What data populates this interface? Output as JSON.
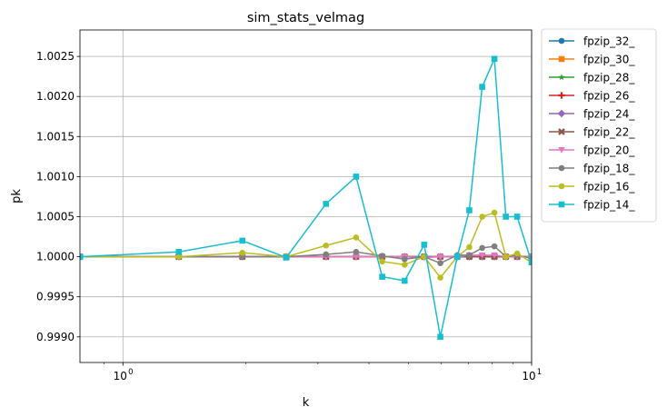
{
  "chart_data": {
    "type": "line",
    "title": "sim_stats_velmag",
    "xlabel": "k",
    "ylabel": "pk",
    "xscale": "log",
    "xlim": [
      0.785,
      10.0
    ],
    "ylim": [
      0.99868,
      1.00283
    ],
    "grid": true,
    "legend_position": "outside-right",
    "x_ticks": [
      {
        "value": 1,
        "label": "10",
        "exp": "0"
      },
      {
        "value": 10,
        "label": "10",
        "exp": "1"
      }
    ],
    "y_ticks": [
      {
        "value": 0.999,
        "label": "0.9990"
      },
      {
        "value": 0.9995,
        "label": "0.9995"
      },
      {
        "value": 1.0,
        "label": "1.0000"
      },
      {
        "value": 1.0005,
        "label": "1.0005"
      },
      {
        "value": 1.001,
        "label": "1.0010"
      },
      {
        "value": 1.0015,
        "label": "1.0015"
      },
      {
        "value": 1.002,
        "label": "1.0020"
      },
      {
        "value": 1.0025,
        "label": "1.0025"
      }
    ],
    "x": [
      0.785,
      1.37,
      1.96,
      2.51,
      3.14,
      3.72,
      4.31,
      4.89,
      5.46,
      5.98,
      6.58,
      7.04,
      7.57,
      8.11,
      8.65,
      9.22,
      10.0
    ],
    "series": [
      {
        "name": "fpzip_32_",
        "color": "#1f77b4",
        "marker": "circle",
        "values": [
          1.0,
          1.0,
          1.0,
          1.0,
          1.0,
          1.0,
          1.0,
          1.0,
          1.0,
          1.0,
          1.0,
          1.0,
          1.0,
          1.0,
          1.0,
          1.0,
          1.0
        ]
      },
      {
        "name": "fpzip_30_",
        "color": "#ff7f0e",
        "marker": "square",
        "values": [
          1.0,
          1.0,
          1.0,
          1.0,
          1.0,
          1.0,
          1.0,
          1.0,
          1.0,
          1.0,
          1.0,
          1.0,
          1.0,
          1.0,
          1.0,
          1.0,
          1.0
        ]
      },
      {
        "name": "fpzip_28_",
        "color": "#2ca02c",
        "marker": "star",
        "values": [
          1.0,
          1.0,
          1.0,
          1.0,
          1.0,
          1.0,
          1.0,
          1.0,
          1.0,
          1.0,
          1.0,
          1.0,
          1.0,
          1.0,
          1.0,
          1.0,
          1.0
        ]
      },
      {
        "name": "fpzip_26_",
        "color": "#d62728",
        "marker": "plus",
        "values": [
          1.0,
          1.0,
          1.0,
          1.0,
          1.0,
          1.0,
          1.0,
          1.0,
          1.0,
          1.0,
          1.0,
          1.0,
          1.0,
          1.0,
          1.0,
          1.0,
          1.0
        ]
      },
      {
        "name": "fpzip_24_",
        "color": "#9467bd",
        "marker": "diamond",
        "values": [
          1.0,
          1.0,
          1.0,
          1.0,
          1.0,
          1.0,
          1.0,
          1.0,
          1.0,
          1.0,
          1.0,
          1.0,
          1.0,
          1.0,
          1.0,
          1.0,
          1.0
        ]
      },
      {
        "name": "fpzip_22_",
        "color": "#8c564b",
        "marker": "x",
        "values": [
          1.0,
          1.0,
          1.0,
          1.0,
          1.0,
          1.0,
          1.0,
          1.0,
          1.0,
          1.0,
          1.0,
          1.0,
          1.0,
          1.0,
          1.0,
          1.0,
          1.0
        ]
      },
      {
        "name": "fpzip_20_",
        "color": "#e377c2",
        "marker": "triangle-down",
        "values": [
          1.0,
          1.0,
          1.0,
          1.0,
          1.0,
          1.0,
          1.0,
          1.0,
          0.99999,
          1.0,
          1.0,
          1.00002,
          1.00002,
          1.00002,
          1.0,
          1.0,
          1.0
        ]
      },
      {
        "name": "fpzip_18_",
        "color": "#7f7f7f",
        "marker": "circle",
        "values": [
          1.0,
          1.0,
          1.0,
          1.0,
          1.00003,
          1.00006,
          1.00001,
          0.99997,
          1.0,
          0.99992,
          1.00002,
          1.00002,
          1.00011,
          1.00013,
          1.0,
          1.00002,
          0.99998
        ]
      },
      {
        "name": "fpzip_16_",
        "color": "#bcbd22",
        "marker": "circle",
        "values": [
          1.0,
          1.0,
          1.00005,
          1.0,
          1.00014,
          1.00024,
          0.99994,
          0.9999,
          1.0,
          0.99974,
          1.0,
          1.00012,
          1.0005,
          1.00055,
          1.0,
          1.00004,
          0.99993
        ]
      },
      {
        "name": "fpzip_14_",
        "color": "#17becf",
        "marker": "square",
        "values": [
          1.0,
          1.00006,
          1.0002,
          0.99999,
          1.00066,
          1.001,
          0.99975,
          0.9997,
          1.00015,
          0.999,
          1.0,
          1.00058,
          1.00212,
          1.00247,
          1.0005,
          1.0005,
          0.99993
        ]
      }
    ]
  }
}
